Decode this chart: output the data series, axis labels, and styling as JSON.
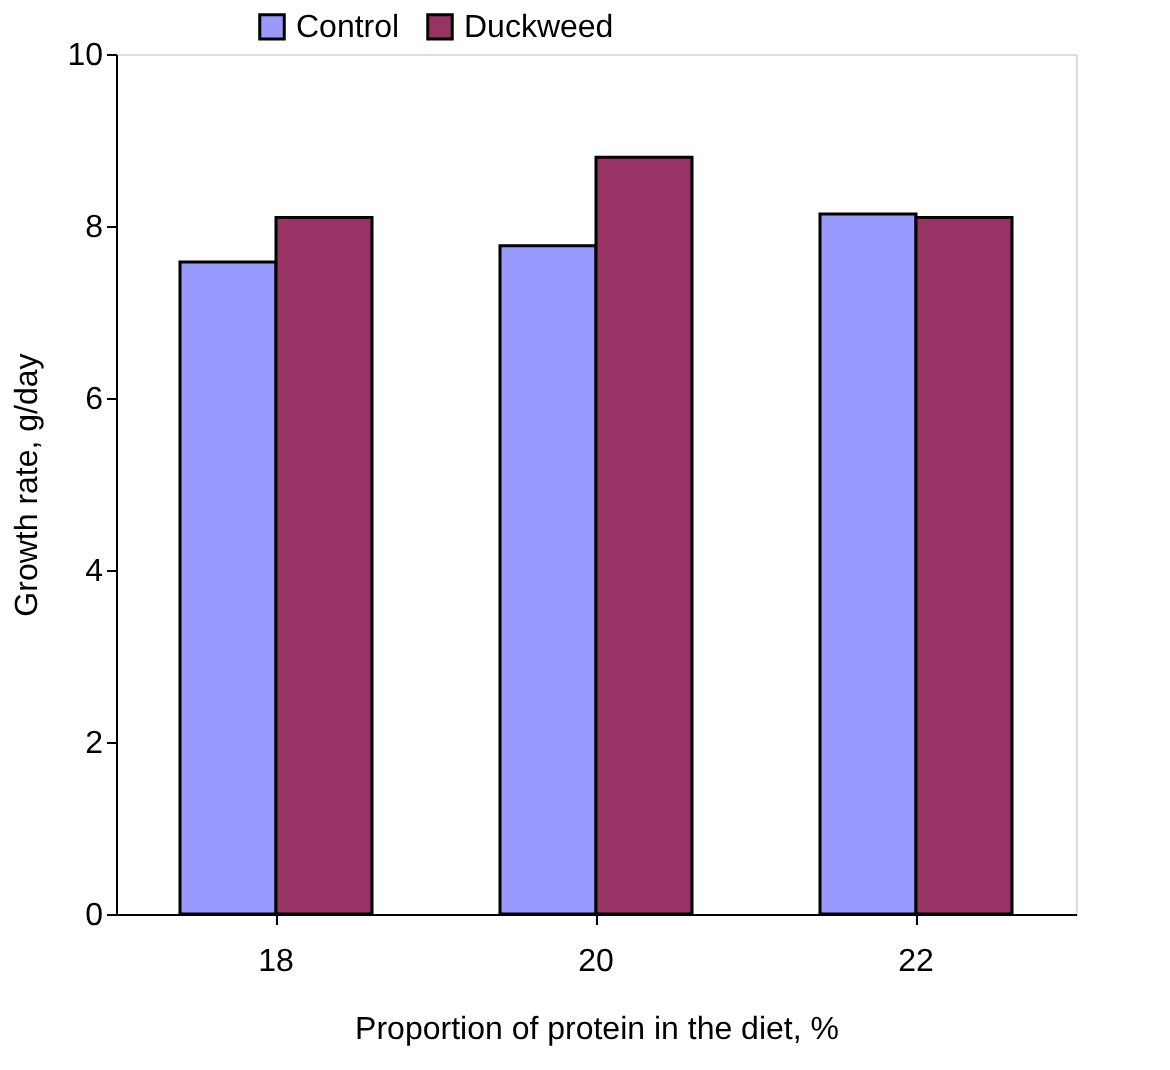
{
  "chart_data": {
    "type": "bar",
    "xlabel": "Proportion of protein in the diet, %",
    "ylabel": "Growth rate, g/day",
    "categories": [
      "18",
      "20",
      "22"
    ],
    "series": [
      {
        "name": "Control",
        "color": "#9999ff",
        "values": [
          7.58,
          7.77,
          8.14
        ]
      },
      {
        "name": "Duckweed",
        "color": "#993366",
        "values": [
          8.1,
          8.8,
          8.1
        ]
      }
    ],
    "ylim": [
      0,
      10
    ],
    "yticks": [
      0,
      2,
      4,
      6,
      8,
      10
    ],
    "grid": false,
    "legend": "top"
  }
}
